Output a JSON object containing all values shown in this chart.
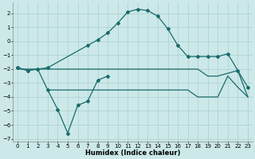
{
  "xlabel": "Humidex (Indice chaleur)",
  "xlim": [
    -0.5,
    23.5
  ],
  "ylim": [
    -7.2,
    2.8
  ],
  "yticks": [
    -7,
    -6,
    -5,
    -4,
    -3,
    -2,
    -1,
    0,
    1,
    2
  ],
  "xticks": [
    0,
    1,
    2,
    3,
    4,
    5,
    6,
    7,
    8,
    9,
    10,
    11,
    12,
    13,
    14,
    15,
    16,
    17,
    18,
    19,
    20,
    21,
    22,
    23
  ],
  "bg_color": "#cce8e8",
  "line_color": "#1a6b6b",
  "grid_color": "#aacfcf",
  "curve_x": [
    0,
    1,
    2,
    3,
    7,
    8,
    9,
    10,
    11,
    12,
    13,
    14,
    15,
    16,
    17,
    18,
    19,
    20,
    21,
    22,
    23
  ],
  "curve_y": [
    -1.9,
    -2.1,
    -2.0,
    -1.9,
    -0.3,
    0.1,
    0.6,
    1.3,
    2.1,
    2.3,
    2.2,
    1.8,
    0.9,
    -0.3,
    -1.1,
    -1.1,
    -1.1,
    -1.1,
    -0.9,
    -2.1,
    -3.3
  ],
  "vshaped_x": [
    0,
    1,
    2,
    3,
    4,
    5,
    6,
    7,
    8,
    9
  ],
  "vshaped_y": [
    -1.9,
    -2.1,
    -2.0,
    -3.5,
    -4.9,
    -6.6,
    -4.6,
    -4.3,
    -2.8,
    -2.5
  ],
  "flat1_x": [
    0,
    1,
    2,
    3,
    4,
    5,
    6,
    7,
    8,
    9,
    10,
    11,
    12,
    13,
    14,
    15,
    16,
    17,
    18,
    19,
    20,
    21,
    22,
    23
  ],
  "flat1_y": [
    -2.0,
    -2.0,
    -2.0,
    -2.0,
    -2.0,
    -2.0,
    -2.0,
    -2.0,
    -2.0,
    -2.0,
    -2.0,
    -2.0,
    -2.0,
    -2.0,
    -2.0,
    -2.0,
    -2.0,
    -2.0,
    -2.0,
    -2.5,
    -2.5,
    -2.3,
    -2.1,
    -4.0
  ],
  "flat2_x": [
    3,
    4,
    5,
    6,
    7,
    8,
    9,
    10,
    11,
    12,
    13,
    14,
    15,
    16,
    17,
    18,
    19,
    20,
    21,
    22,
    23
  ],
  "flat2_y": [
    -3.5,
    -3.5,
    -3.5,
    -3.5,
    -3.5,
    -3.5,
    -3.5,
    -3.5,
    -3.5,
    -3.5,
    -3.5,
    -3.5,
    -3.5,
    -3.5,
    -3.5,
    -4.0,
    -4.0,
    -4.0,
    -2.5,
    -3.3,
    -4.0
  ]
}
